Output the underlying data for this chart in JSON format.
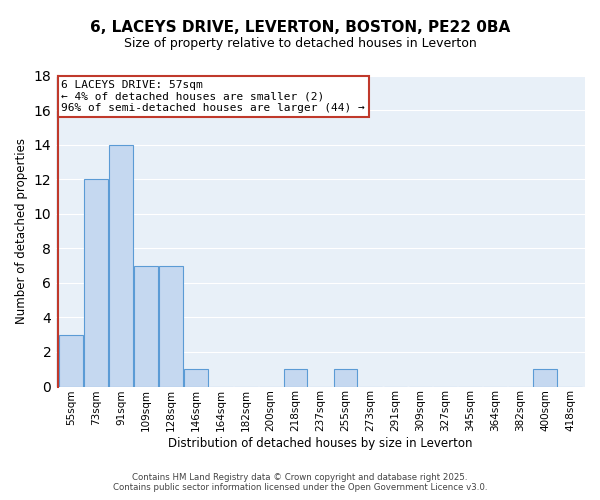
{
  "title": "6, LACEYS DRIVE, LEVERTON, BOSTON, PE22 0BA",
  "subtitle": "Size of property relative to detached houses in Leverton",
  "xlabel": "Distribution of detached houses by size in Leverton",
  "ylabel": "Number of detached properties",
  "bar_labels": [
    "55sqm",
    "73sqm",
    "91sqm",
    "109sqm",
    "128sqm",
    "146sqm",
    "164sqm",
    "182sqm",
    "200sqm",
    "218sqm",
    "237sqm",
    "255sqm",
    "273sqm",
    "291sqm",
    "309sqm",
    "327sqm",
    "345sqm",
    "364sqm",
    "382sqm",
    "400sqm",
    "418sqm"
  ],
  "bar_values": [
    3,
    12,
    14,
    7,
    7,
    1,
    0,
    0,
    0,
    1,
    0,
    1,
    0,
    0,
    0,
    0,
    0,
    0,
    0,
    1,
    0
  ],
  "bar_color": "#c5d8f0",
  "bar_edge_color": "#5b9bd5",
  "highlight_color": "#c0392b",
  "annotation_text": "6 LACEYS DRIVE: 57sqm\n← 4% of detached houses are smaller (2)\n96% of semi-detached houses are larger (44) →",
  "annotation_box_color": "white",
  "annotation_border_color": "#c0392b",
  "ylim": [
    0,
    18
  ],
  "yticks": [
    0,
    2,
    4,
    6,
    8,
    10,
    12,
    14,
    16,
    18
  ],
  "background_color": "#e8f0f8",
  "footer_line1": "Contains HM Land Registry data © Crown copyright and database right 2025.",
  "footer_line2": "Contains public sector information licensed under the Open Government Licence v3.0."
}
